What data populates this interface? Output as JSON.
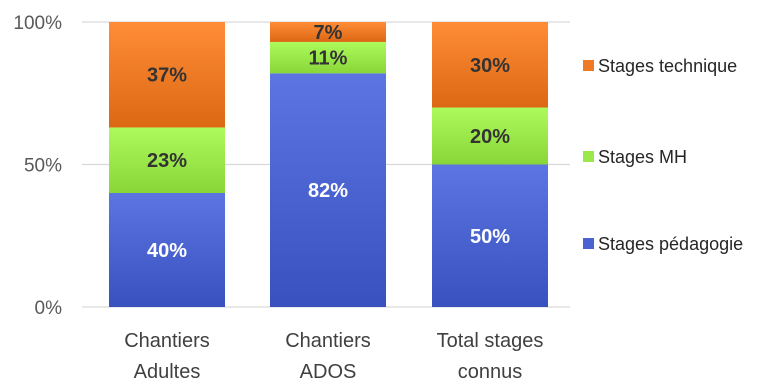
{
  "chart_data": {
    "type": "bar",
    "stacked": true,
    "percent": true,
    "categories": [
      [
        "Chantiers",
        "Adultes"
      ],
      [
        "Chantiers",
        "ADOS"
      ],
      [
        "Total stages",
        "connus"
      ]
    ],
    "series": [
      {
        "name": "Stages pédagogie",
        "values": [
          40,
          82,
          50
        ],
        "labels": [
          "40%",
          "82%",
          "50%"
        ],
        "color": "#4a63d0",
        "label_color": "#ffffff"
      },
      {
        "name": "Stages MH",
        "values": [
          23,
          11,
          20
        ],
        "labels": [
          "23%",
          "11%",
          "20%"
        ],
        "color": "#9be84a",
        "label_color": "#333333"
      },
      {
        "name": "Stages technique",
        "values": [
          37,
          7,
          30
        ],
        "labels": [
          "37%",
          "7%",
          "30%"
        ],
        "color": "#ee7a25",
        "label_color": "#333333"
      }
    ],
    "yticks": [
      "0%",
      "50%",
      "100%"
    ],
    "ytick_values": [
      0,
      50,
      100
    ],
    "ylim": [
      0,
      100
    ],
    "grid": true,
    "legend": {
      "placement": "right",
      "order": [
        "Stages technique",
        "Stages MH",
        "Stages pédagogie"
      ]
    }
  }
}
